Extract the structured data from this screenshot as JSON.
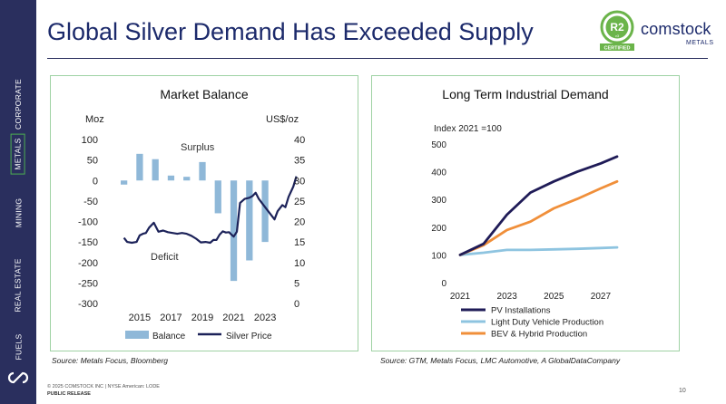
{
  "title": "Global Silver Demand Has Exceeded Supply",
  "sidebar": {
    "items": [
      {
        "label": "CORPORATE",
        "active": false
      },
      {
        "label": "METALS",
        "active": true
      },
      {
        "label": "MINING",
        "active": false
      },
      {
        "label": "REAL ESTATE",
        "active": false
      },
      {
        "label": "FUELS",
        "active": false
      }
    ],
    "logo_icon": "comstock-loop-icon"
  },
  "brand": {
    "badge_text": "R2",
    "badge_version": "v3",
    "badge_footer": "CERTIFIED",
    "name": "comstock",
    "sub": "METALS",
    "colors": {
      "badge_green": "#6bb44a",
      "navy": "#1c2a6b"
    }
  },
  "colors": {
    "navy": "#1c2a6b",
    "sidebar": "#2a2f5e",
    "panel_border": "#9fd2a4",
    "balance_bar": "#8fb8d8",
    "silver_line": "#1c2259",
    "pv": "#1f1b57",
    "ldv": "#8ec4e0",
    "bev": "#f08f3a"
  },
  "chart_data": [
    {
      "type": "bar",
      "title": "Market Balance",
      "left_axis_label": "Moz",
      "right_axis_label": "US$/oz",
      "y_left_lim": [
        -300,
        100
      ],
      "y_left_ticks": [
        "100",
        "50",
        "0",
        "-50",
        "-100",
        "-150",
        "-200",
        "-250",
        "-300"
      ],
      "y_right_lim": [
        0,
        40
      ],
      "y_right_ticks": [
        "40",
        "35",
        "30",
        "25",
        "20",
        "15",
        "10",
        "5",
        "0"
      ],
      "x_ticks": [
        "2015",
        "2017",
        "2019",
        "2021",
        "2023"
      ],
      "annotations": {
        "surplus": "Surplus",
        "deficit": "Deficit"
      },
      "grid": false,
      "legend_position": "bottom",
      "series": [
        {
          "name": "Balance",
          "type": "bar",
          "x": [
            2014,
            2015,
            2016,
            2017,
            2018,
            2019,
            2020,
            2021,
            2022,
            2023,
            2024
          ],
          "values": [
            -10,
            65,
            52,
            12,
            9,
            45,
            -80,
            -245,
            -195,
            -150,
            0
          ]
        },
        {
          "name": "Silver Price",
          "type": "line",
          "x": [
            2014.0,
            2014.2,
            2014.5,
            2014.8,
            2015.0,
            2015.2,
            2015.4,
            2015.6,
            2015.9,
            2016.2,
            2016.5,
            2016.8,
            2017.1,
            2017.4,
            2017.7,
            2018.0,
            2018.3,
            2018.6,
            2018.9,
            2019.2,
            2019.5,
            2019.7,
            2019.9,
            2020.1,
            2020.3,
            2020.5,
            2020.7,
            2020.8,
            2021.0,
            2021.2,
            2021.4,
            2021.7,
            2022.0,
            2022.2,
            2022.4,
            2022.6,
            2022.8,
            2023.0,
            2023.3,
            2023.6,
            2023.8,
            2024.1,
            2024.3,
            2024.5,
            2024.8,
            2025.0
          ],
          "values": [
            16.0,
            15.0,
            14.8,
            15.0,
            16.6,
            17.0,
            17.2,
            18.5,
            19.7,
            17.5,
            17.8,
            17.4,
            17.2,
            17.0,
            17.2,
            17.0,
            16.5,
            15.8,
            14.9,
            15.0,
            14.8,
            15.5,
            15.5,
            16.8,
            17.6,
            17.3,
            17.4,
            17.0,
            16.3,
            17.5,
            24.5,
            25.5,
            25.8,
            26.2,
            27.0,
            25.5,
            24.5,
            23.5,
            22.0,
            20.5,
            22.5,
            24.0,
            23.5,
            26.0,
            28.5,
            31.0
          ]
        }
      ]
    },
    {
      "type": "line",
      "title": "Long Term Industrial Demand",
      "ylabel": "Index 2021 =100",
      "ylim": [
        0,
        500
      ],
      "y_ticks": [
        "500",
        "400",
        "300",
        "200",
        "100",
        "0"
      ],
      "x_ticks": [
        "2021",
        "2023",
        "2025",
        "2027"
      ],
      "x": [
        2021,
        2022,
        2023,
        2024,
        2025,
        2026,
        2027,
        2028
      ],
      "grid": false,
      "legend_position": "bottom",
      "series": [
        {
          "name": "PV Installations",
          "values": [
            100,
            140,
            245,
            325,
            365,
            400,
            430,
            455
          ]
        },
        {
          "name": "Light Duty Vehicle Production",
          "values": [
            100,
            108,
            118,
            118,
            120,
            122,
            125,
            127
          ]
        },
        {
          "name": "BEV & Hybrid Production",
          "values": [
            100,
            135,
            190,
            220,
            268,
            302,
            340,
            365
          ]
        }
      ]
    }
  ],
  "sources": {
    "left": "Source: Metals Focus, Bloomberg",
    "right": "Source: GTM, Metals Focus, LMC Automotive, A GlobalDataCompany"
  },
  "footer": {
    "copyright": "© 2025 COMSTOCK INC | NYSE American: LODE",
    "release": "PUBLIC RELEASE",
    "page_number": "10"
  }
}
